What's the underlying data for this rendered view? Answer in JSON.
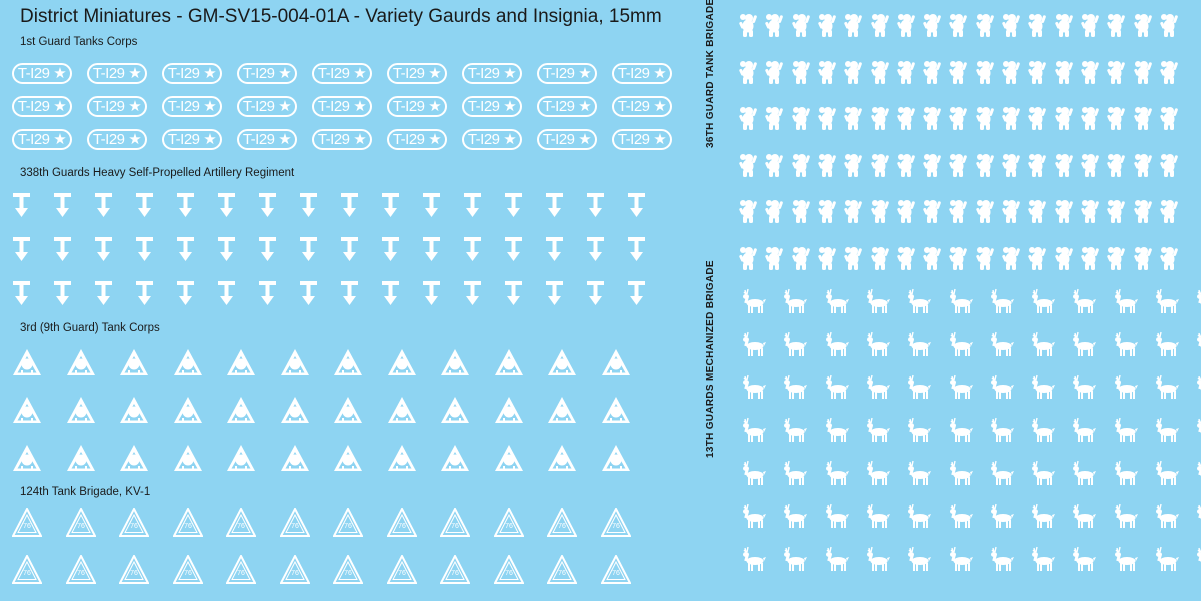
{
  "title": "District Miniatures - GM-SV15-004-01A - Variety Gaurds and Insignia, 15mm",
  "sections": {
    "guard_tanks": "1st Guard Tanks Corps",
    "artillery": "338th Guards Heavy Self-Propelled Artillery Regiment",
    "tank_corps": "3rd (9th Guard) Tank Corps",
    "kv1": "124th Tank Brigade, KV-1",
    "bears": "36TH GUARD TANK BRIGADE",
    "deer": "13TH GUARDS MECHANIZED BRIGADE"
  },
  "plate_text": "T-I29 ★",
  "kv1_number": "76",
  "counts": {
    "plates": {
      "rows": 3,
      "cols": 9
    },
    "t_arrows": {
      "rows": 3,
      "cols": 16
    },
    "triangles": {
      "rows": 3,
      "cols": 12
    },
    "kv1": {
      "rows": 2,
      "cols": 12
    },
    "bears": {
      "rows": 6,
      "cols": 17
    },
    "deer": {
      "rows": 7,
      "cols": 12
    }
  },
  "colors": {
    "background": "#8ed4f2",
    "decal": "#ffffff",
    "text": "#1a1a1a"
  }
}
